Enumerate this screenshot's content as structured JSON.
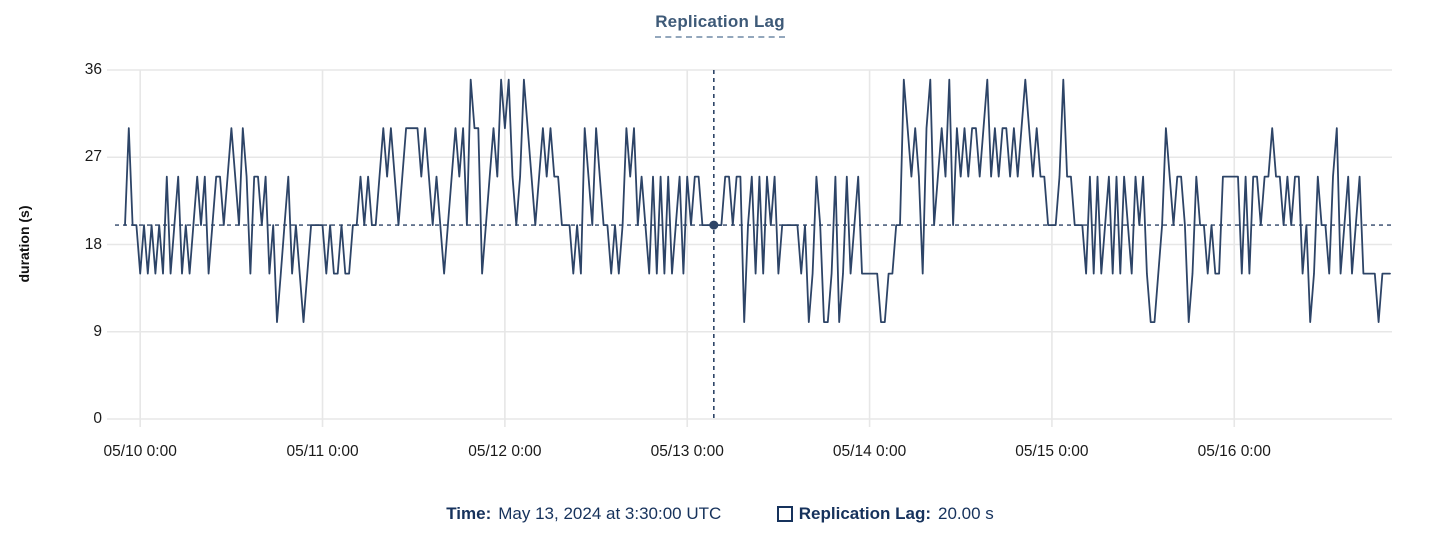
{
  "colors": {
    "line": "#2d4467",
    "crosshair": "#2d4467",
    "title": "#3e5a78",
    "grid": "#e7e7e7",
    "navy_text": "#16325c",
    "tick_text": "#1a1a1a",
    "background": "#ffffff"
  },
  "chart_data": {
    "type": "line",
    "title": "Replication Lag",
    "xlabel": "",
    "ylabel": "duration (s)",
    "ylim": [
      0,
      36
    ],
    "y_ticks": [
      0,
      9,
      18,
      27,
      36
    ],
    "x_ticks": [
      "05/10 0:00",
      "05/11 0:00",
      "05/12 0:00",
      "05/13 0:00",
      "05/14 0:00",
      "05/15 0:00",
      "05/16 0:00"
    ],
    "x_tick_indices": [
      4,
      52,
      100,
      148,
      196,
      244,
      292
    ],
    "grid": true,
    "legend_position": "bottom",
    "series": [
      {
        "name": "Replication Lag",
        "unit": "s",
        "values": [
          20,
          30,
          20,
          20,
          15,
          20,
          15,
          20,
          15,
          20,
          15,
          25,
          15,
          20,
          25,
          15,
          20,
          15,
          20,
          25,
          20,
          25,
          15,
          20,
          25,
          25,
          20,
          25,
          30,
          25,
          20,
          30,
          25,
          15,
          25,
          25,
          20,
          25,
          15,
          20,
          10,
          15,
          20,
          25,
          15,
          20,
          15,
          10,
          15,
          20,
          20,
          20,
          20,
          15,
          20,
          15,
          15,
          20,
          15,
          15,
          20,
          20,
          25,
          20,
          25,
          20,
          20,
          25,
          30,
          25,
          30,
          25,
          20,
          25,
          30,
          30,
          30,
          30,
          25,
          30,
          25,
          20,
          25,
          20,
          15,
          20,
          25,
          30,
          25,
          30,
          20,
          35,
          30,
          30,
          15,
          20,
          25,
          30,
          25,
          35,
          30,
          35,
          25,
          20,
          25,
          35,
          30,
          25,
          20,
          25,
          30,
          25,
          30,
          25,
          25,
          20,
          20,
          20,
          15,
          20,
          15,
          30,
          25,
          20,
          30,
          25,
          20,
          20,
          15,
          20,
          15,
          20,
          30,
          25,
          30,
          20,
          25,
          20,
          15,
          25,
          15,
          25,
          15,
          25,
          15,
          20,
          25,
          15,
          25,
          20,
          25,
          25,
          20,
          20,
          20,
          20,
          20,
          20,
          25,
          25,
          20,
          25,
          25,
          10,
          20,
          25,
          15,
          25,
          15,
          25,
          20,
          25,
          15,
          20,
          20,
          20,
          20,
          20,
          15,
          20,
          10,
          15,
          25,
          20,
          10,
          10,
          15,
          25,
          10,
          15,
          25,
          15,
          20,
          25,
          15,
          15,
          15,
          15,
          15,
          10,
          10,
          15,
          15,
          20,
          20,
          35,
          30,
          25,
          30,
          25,
          15,
          30,
          35,
          20,
          25,
          30,
          25,
          35,
          20,
          30,
          25,
          30,
          25,
          30,
          30,
          25,
          30,
          35,
          25,
          30,
          25,
          30,
          30,
          25,
          30,
          25,
          30,
          35,
          30,
          25,
          30,
          25,
          25,
          20,
          20,
          20,
          25,
          35,
          25,
          25,
          20,
          20,
          20,
          15,
          25,
          15,
          25,
          15,
          20,
          25,
          15,
          25,
          15,
          25,
          20,
          15,
          25,
          20,
          25,
          15,
          10,
          10,
          15,
          20,
          30,
          25,
          20,
          25,
          25,
          20,
          10,
          15,
          25,
          20,
          20,
          15,
          20,
          15,
          15,
          25,
          25,
          25,
          25,
          25,
          15,
          25,
          15,
          25,
          25,
          20,
          25,
          25,
          30,
          25,
          25,
          20,
          25,
          20,
          25,
          25,
          15,
          20,
          10,
          15,
          25,
          20,
          20,
          15,
          25,
          30,
          15,
          20,
          25,
          15,
          20,
          25,
          15,
          15,
          15,
          15,
          10,
          15,
          15,
          15
        ]
      }
    ],
    "crosshair": {
      "index": 155,
      "x_label": "May 13, 2024 at 3:30:00 UTC",
      "y_value": 20,
      "y_value_label": "20.00 s"
    }
  },
  "tooltip": {
    "time_label": "Time:",
    "time_value": "May 13, 2024 at 3:30:00 UTC",
    "series_label": "Replication Lag:",
    "series_value": "20.00 s"
  }
}
